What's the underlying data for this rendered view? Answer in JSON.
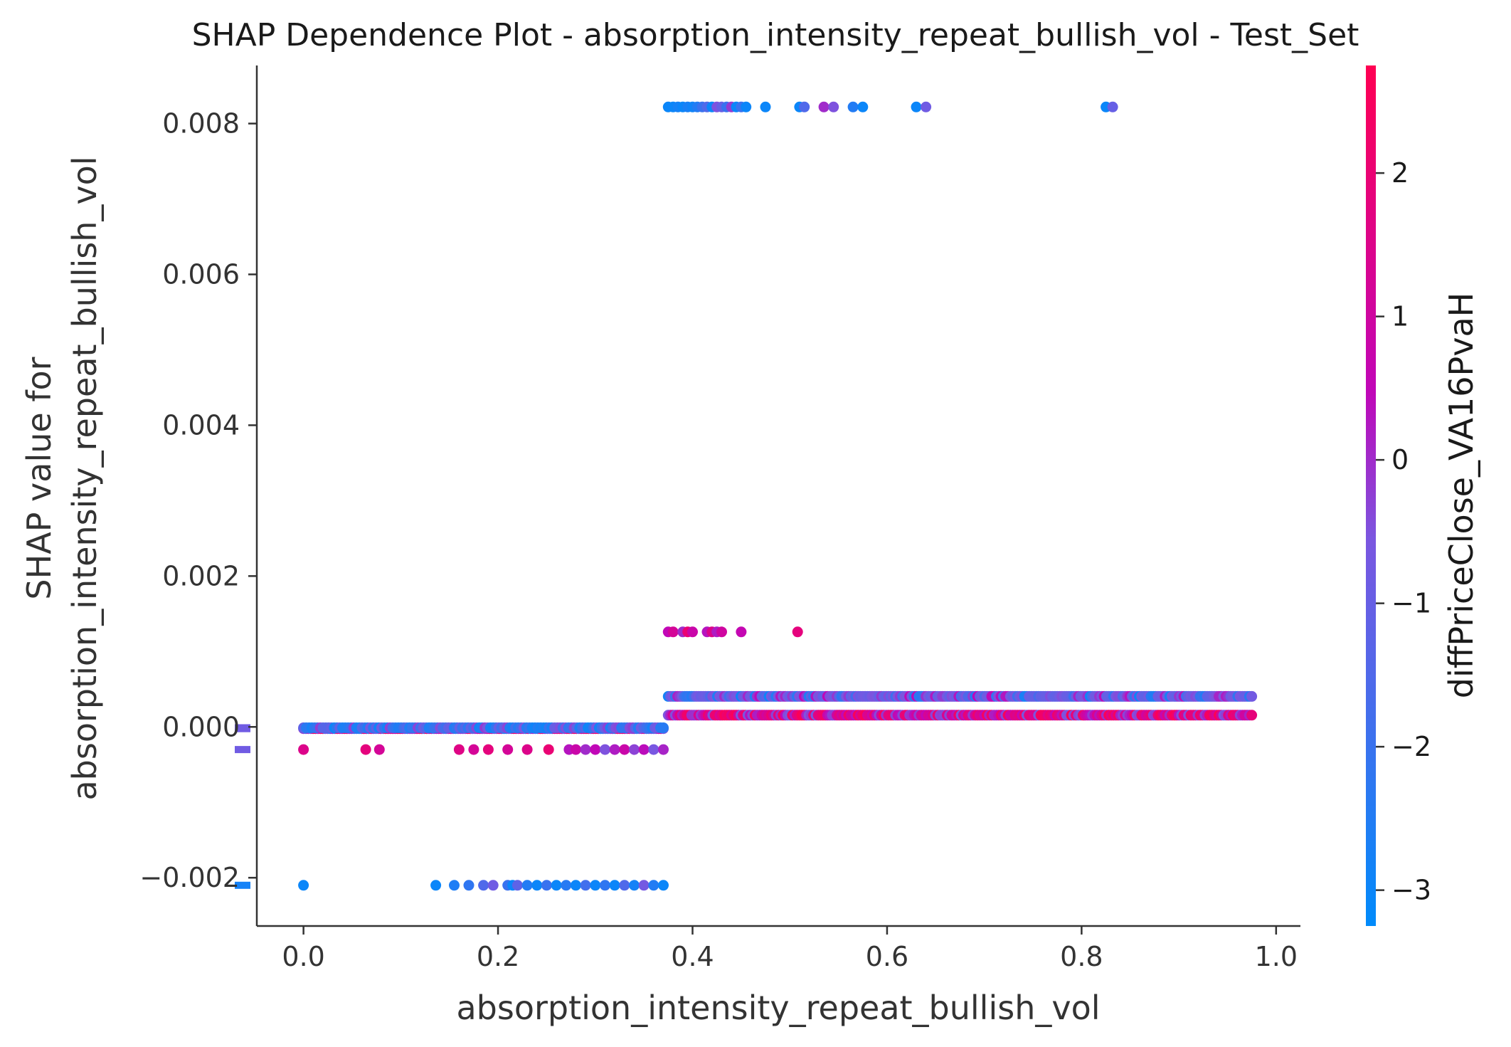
{
  "chart_data": {
    "type": "scatter",
    "title": "SHAP Dependence Plot - absorption_intensity_repeat_bullish_vol - Test_Set",
    "xlabel": "absorption_intensity_repeat_bullish_vol",
    "ylabel_lines": [
      "SHAP value for",
      "absorption_intensity_repeat_bullish_vol"
    ],
    "xlim": [
      -0.048,
      1.025
    ],
    "ylim": [
      -0.00264,
      0.00877
    ],
    "x_ticks": [
      0.0,
      0.2,
      0.4,
      0.6,
      0.8,
      1.0
    ],
    "x_tick_labels": [
      "0.0",
      "0.2",
      "0.4",
      "0.6",
      "0.8",
      "1.0"
    ],
    "y_ticks": [
      -0.002,
      0.0,
      0.002,
      0.004,
      0.006,
      0.008
    ],
    "y_tick_labels": [
      "−0.002",
      "0.000",
      "0.002",
      "0.004",
      "0.006",
      "0.008"
    ],
    "colorbar": {
      "label": "diffPriceClose_VA16PvaH",
      "range": [
        -3.25,
        2.75
      ],
      "ticks": [
        -3,
        -2,
        -1,
        0,
        1,
        2
      ],
      "tick_labels": [
        "−3",
        "−2",
        "−1",
        "0",
        "1",
        "2"
      ],
      "colors": [
        "#008bfb",
        "#7b56e0",
        "#c007b8",
        "#ff0052"
      ]
    },
    "nan_markers": [
      {
        "y": -2.25e-05,
        "color_value": -0.8
      },
      {
        "y": -1.2e-05,
        "color_value": -0.8
      },
      {
        "y": -0.0003,
        "color_value": -0.8
      },
      {
        "y": -0.0021,
        "color_value": -2.8
      }
    ],
    "clusters": [
      {
        "y": 0.00822,
        "x": [
          0.375,
          0.38,
          0.385,
          0.39,
          0.395,
          0.4,
          0.405,
          0.41,
          0.415,
          0.42,
          0.425,
          0.43,
          0.435,
          0.44,
          0.445,
          0.45,
          0.455,
          0.475,
          0.51,
          0.515,
          0.535,
          0.545,
          0.565,
          0.575,
          0.63,
          0.64,
          0.825,
          0.832
        ],
        "c": [
          -3,
          -3,
          -2.8,
          -3,
          -2.7,
          -2.9,
          -2.5,
          -2,
          -1.5,
          -3,
          -0.5,
          -1,
          -2,
          -0.2,
          -3,
          -2,
          -3,
          -3,
          -3,
          -1.5,
          0,
          -0.5,
          -2.5,
          -3,
          -3,
          -0.8,
          -3,
          -1
        ]
      },
      {
        "y": 0.00126,
        "x": [
          0.375,
          0.38,
          0.39,
          0.395,
          0.4,
          0.415,
          0.42,
          0.425,
          0.43,
          0.45,
          0.508
        ],
        "c": [
          0.5,
          1.2,
          0,
          2,
          0.8,
          0.3,
          1.5,
          0.2,
          1,
          0.6,
          1.8
        ]
      },
      {
        "y": -0.0003,
        "x": [
          0.0,
          0.064,
          0.078,
          0.16,
          0.175,
          0.19,
          0.21,
          0.23,
          0.252,
          0.273,
          0.28,
          0.29,
          0.3,
          0.31,
          0.32,
          0.33,
          0.34,
          0.35,
          0.36,
          0.37
        ],
        "c": [
          1.5,
          1.8,
          1.2,
          1.6,
          1.2,
          1.8,
          1.2,
          1.5,
          2,
          0.3,
          0.8,
          0,
          0.5,
          -0.5,
          0.2,
          0.8,
          -0.3,
          0.4,
          -0.6,
          0.1
        ]
      },
      {
        "y": -0.0021,
        "x": [
          0.0,
          0.136,
          0.155,
          0.17,
          0.185,
          0.195,
          0.21,
          0.215,
          0.22,
          0.23,
          0.24,
          0.25,
          0.26,
          0.27,
          0.28,
          0.29,
          0.3,
          0.31,
          0.32,
          0.33,
          0.34,
          0.35,
          0.36,
          0.37
        ],
        "c": [
          -3,
          -3,
          -2.6,
          -2.2,
          -1.5,
          -0.8,
          -2,
          -3,
          -1.2,
          -2.5,
          -3,
          -2,
          -3,
          -2.4,
          -3,
          -1.8,
          -3,
          -2.2,
          -3,
          -1.5,
          -2.8,
          -0.7,
          -2.5,
          -3
        ]
      }
    ],
    "bands": [
      {
        "y": -2.25e-05,
        "x_range": [
          0.0,
          0.37
        ],
        "n": 150,
        "c_mode": "mixed"
      },
      {
        "y": -1.2e-05,
        "x_range": [
          0.0,
          0.37
        ],
        "n": 130,
        "c_mode": "blue"
      },
      {
        "y": 0.000405,
        "x_range": [
          0.375,
          0.975
        ],
        "n": 250,
        "c_mode": "bluepurple"
      },
      {
        "y": 0.000155,
        "x_range": [
          0.375,
          0.975
        ],
        "n": 250,
        "c_mode": "pinkpurple"
      }
    ]
  }
}
